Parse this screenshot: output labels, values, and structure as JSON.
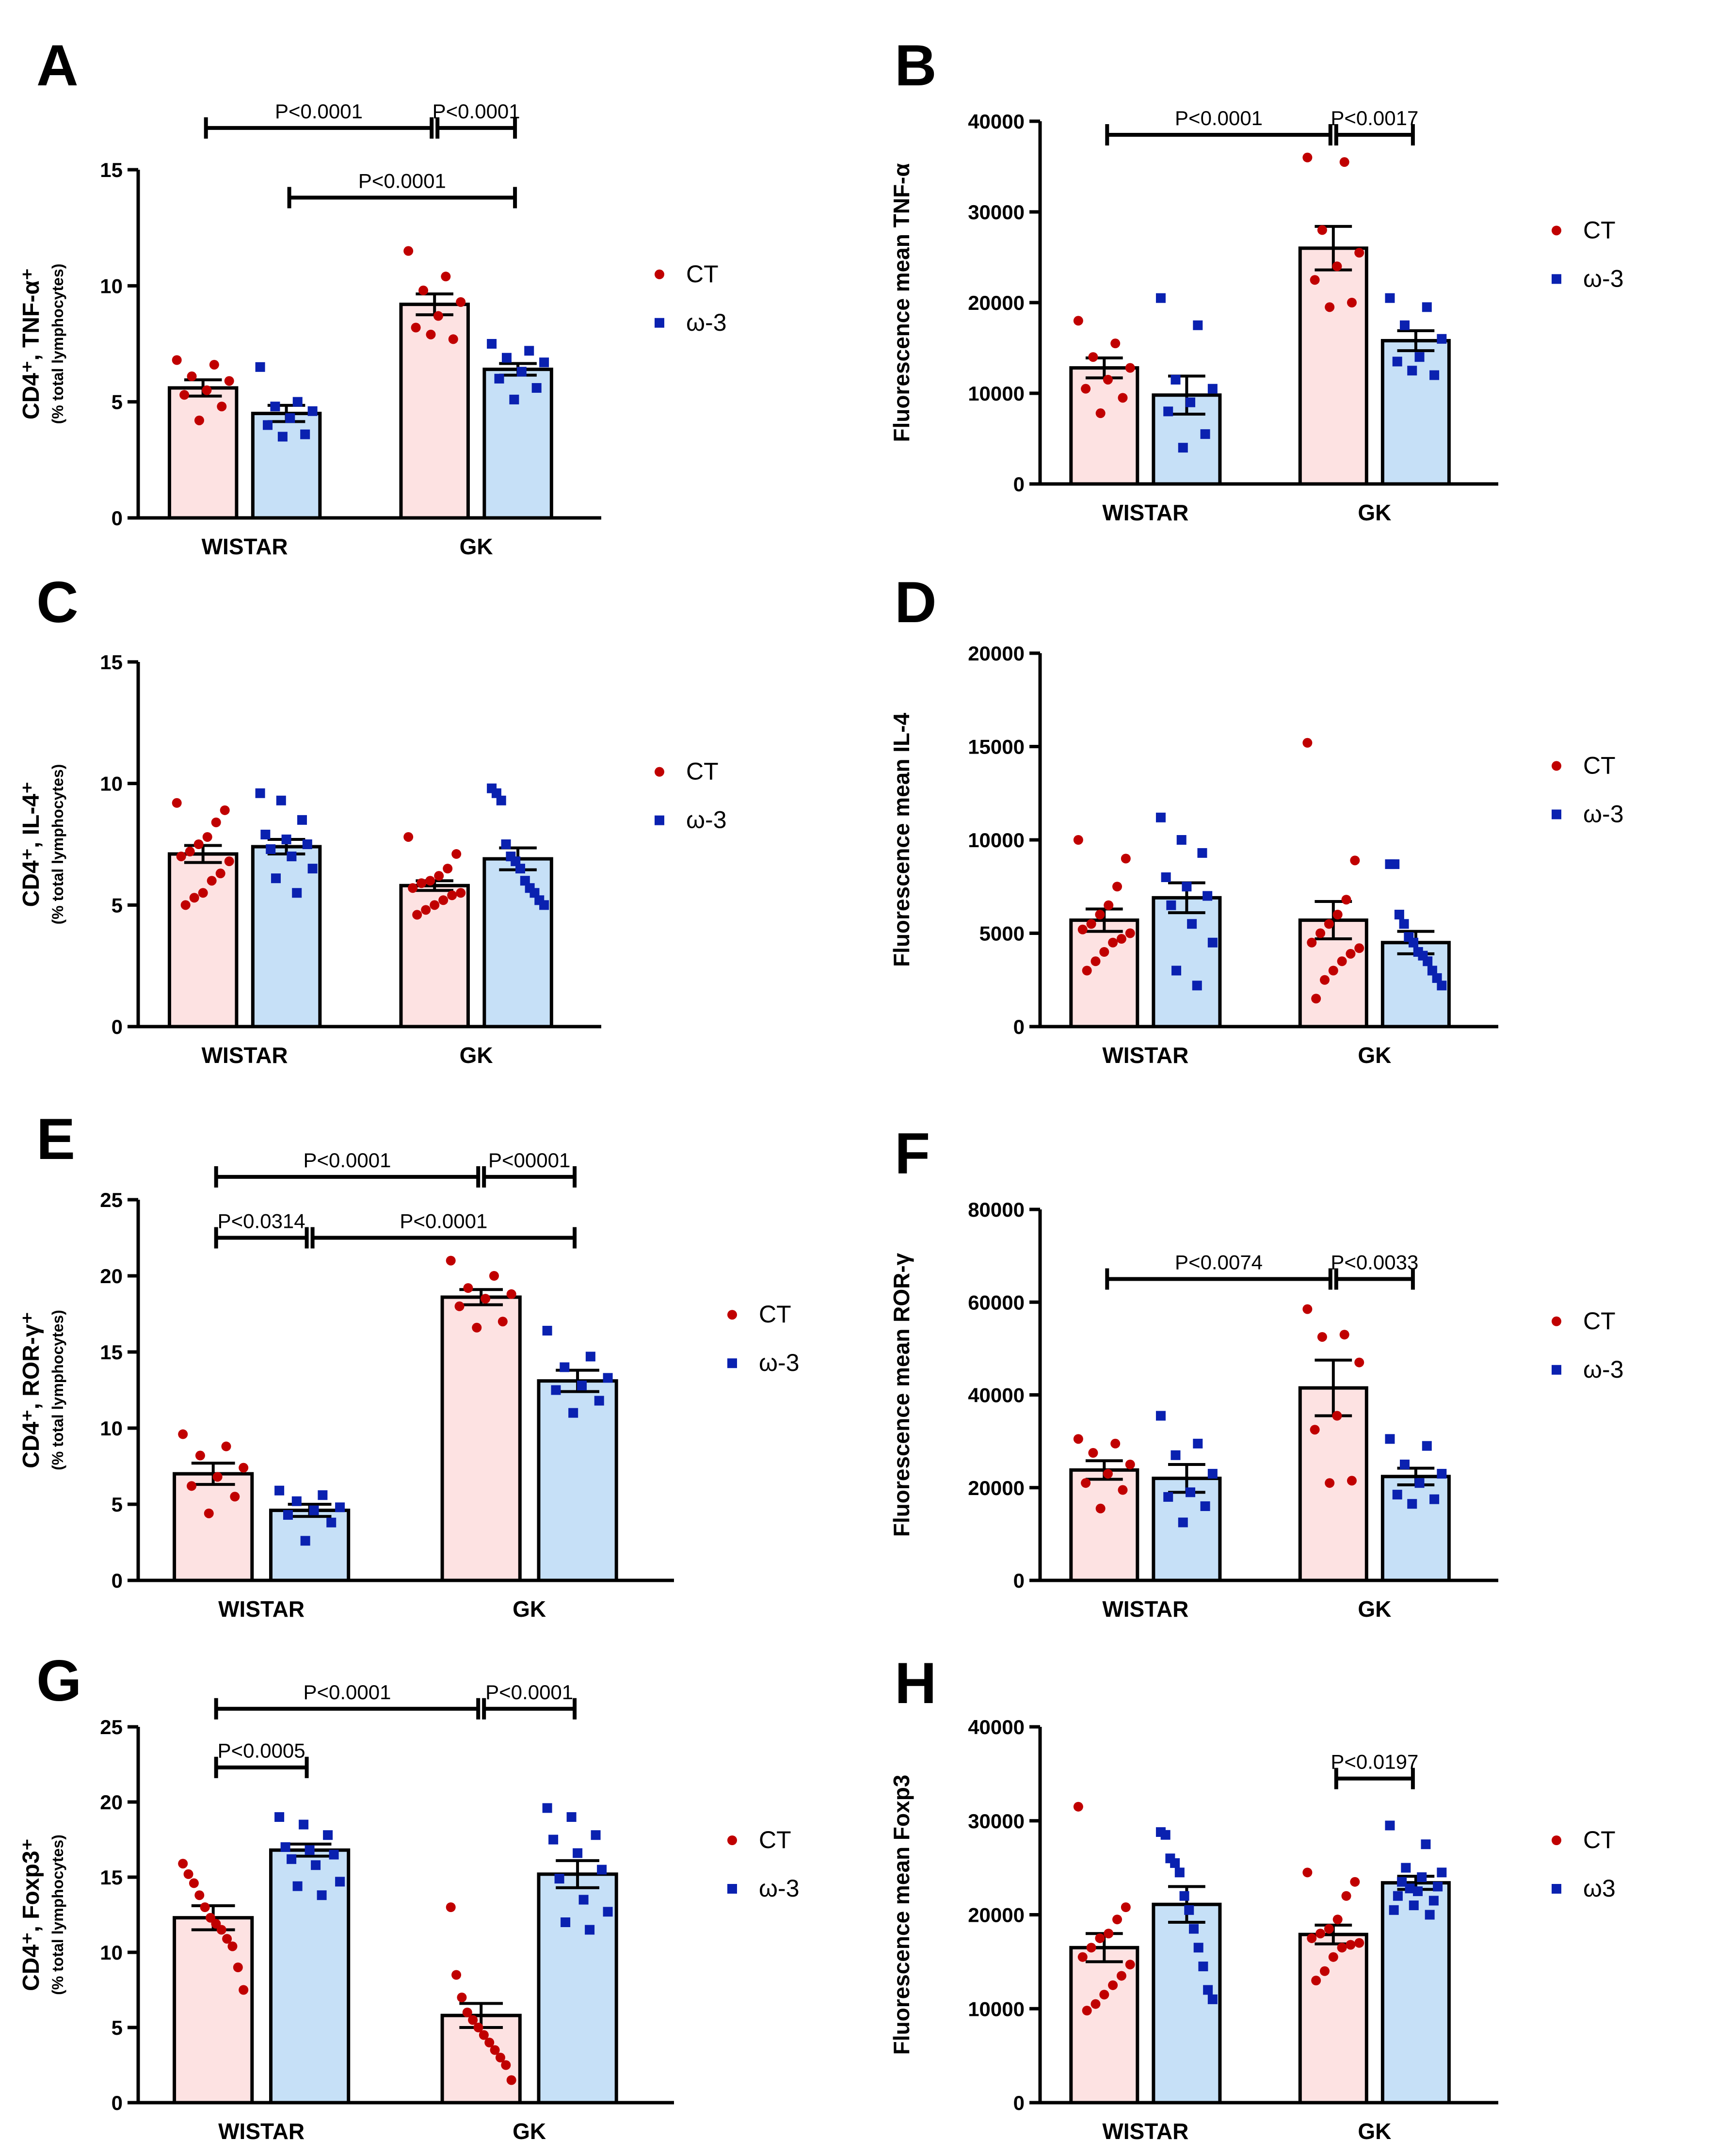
{
  "legend_default": {
    "ct": "CT",
    "w3": "ω-3"
  },
  "chart_data": [
    {
      "id": "A",
      "type": "bar",
      "letter": "A",
      "title": "",
      "ylabel": "CD4⁺, TNF-α⁺",
      "ylabel_sub": "(% total lymphocytes)",
      "ylim": [
        0,
        15
      ],
      "yticks": [
        "0",
        "5",
        "10",
        "15"
      ],
      "categories": [
        "WISTAR",
        "GK"
      ],
      "legend": {
        "ct": "CT",
        "w3": "ω-3"
      },
      "series": [
        {
          "name": "CT",
          "values": [
            5.6,
            9.2
          ],
          "sem": [
            0.35,
            0.45
          ],
          "points": [
            [
              6.8,
              6.6,
              6.1,
              5.9,
              5.5,
              5.3,
              4.8,
              4.2
            ],
            [
              11.5,
              10.4,
              9.8,
              9.3,
              8.7,
              8.2,
              7.7,
              7.9
            ]
          ]
        },
        {
          "name": "ω-3",
          "values": [
            4.5,
            6.4
          ],
          "sem": [
            0.35,
            0.25
          ],
          "points": [
            [
              6.5,
              5.0,
              4.8,
              4.6,
              4.3,
              4.0,
              3.6,
              3.5
            ],
            [
              7.5,
              7.2,
              6.9,
              6.7,
              6.3,
              6.0,
              5.6,
              5.1
            ]
          ]
        }
      ],
      "significance": [
        {
          "from": 0,
          "to": 2,
          "level": 16.8,
          "label": "P<0.0001"
        },
        {
          "from": 2,
          "to": 3,
          "level": 16.8,
          "label": "P<0.0001"
        },
        {
          "from": 1,
          "to": 3,
          "level": 13.8,
          "label": "P<0.0001"
        }
      ]
    },
    {
      "id": "B",
      "type": "bar",
      "letter": "B",
      "title": "",
      "ylabel": "Fluorescence mean TNF-α",
      "ylabel_sub": "",
      "ylim": [
        0,
        40000
      ],
      "yticks": [
        "0",
        "10000",
        "20000",
        "30000",
        "40000"
      ],
      "categories": [
        "WISTAR",
        "GK"
      ],
      "legend": {
        "ct": "CT",
        "w3": "ω-3"
      },
      "series": [
        {
          "name": "CT",
          "values": [
            12800,
            26000
          ],
          "sem": [
            1100,
            2400
          ],
          "points": [
            [
              18000,
              15500,
              14000,
              12800,
              11500,
              10500,
              9500,
              7800
            ],
            [
              36000,
              35500,
              28000,
              25500,
              24000,
              22500,
              20000,
              19500
            ]
          ]
        },
        {
          "name": "ω-3",
          "values": [
            9800,
            15800
          ],
          "sem": [
            2100,
            1100
          ],
          "points": [
            [
              20500,
              17500,
              11500,
              10500,
              9000,
              8000,
              5500,
              4000
            ],
            [
              20500,
              19500,
              17500,
              16000,
              14000,
              13500,
              12000,
              12500
            ]
          ]
        }
      ],
      "significance": [
        {
          "from": 0,
          "to": 2,
          "level": 38500,
          "label": "P<0.0001"
        },
        {
          "from": 2,
          "to": 3,
          "level": 38500,
          "label": "P<0.0017"
        }
      ]
    },
    {
      "id": "C",
      "type": "bar",
      "letter": "C",
      "title": "",
      "ylabel": "CD4⁺, IL-4⁺",
      "ylabel_sub": "(% total lymphocytes)",
      "ylim": [
        0,
        15
      ],
      "yticks": [
        "0",
        "5",
        "10",
        "15"
      ],
      "categories": [
        "WISTAR",
        "GK"
      ],
      "legend": {
        "ct": "CT",
        "w3": "ω-3"
      },
      "series": [
        {
          "name": "CT",
          "values": [
            7.1,
            5.8
          ],
          "sem": [
            0.35,
            0.2
          ],
          "points": [
            [
              9.2,
              8.9,
              8.4,
              7.8,
              7.5,
              7.2,
              7.0,
              6.8,
              6.3,
              6.0,
              5.5,
              5.3,
              5.0
            ],
            [
              7.8,
              7.1,
              6.5,
              6.2,
              6.0,
              5.9,
              5.7,
              5.5,
              5.4,
              5.2,
              5.0,
              4.8,
              4.6
            ]
          ]
        },
        {
          "name": "ω-3",
          "values": [
            7.4,
            6.9
          ],
          "sem": [
            0.3,
            0.45
          ],
          "points": [
            [
              9.6,
              9.3,
              8.5,
              7.9,
              7.7,
              7.5,
              7.3,
              7.0,
              6.5,
              6.1,
              5.5
            ],
            [
              9.8,
              9.6,
              9.3,
              7.5,
              7.0,
              6.8,
              6.5,
              6.0,
              5.7,
              5.5,
              5.2,
              5.0
            ]
          ]
        }
      ],
      "significance": []
    },
    {
      "id": "D",
      "type": "bar",
      "letter": "D",
      "title": "",
      "ylabel": "Fluorescence mean IL-4",
      "ylabel_sub": "",
      "ylim": [
        0,
        20000
      ],
      "yticks": [
        "0",
        "5000",
        "10000",
        "15000",
        "20000"
      ],
      "categories": [
        "WISTAR",
        "GK"
      ],
      "legend": {
        "ct": "CT",
        "w3": "ω-3"
      },
      "series": [
        {
          "name": "CT",
          "values": [
            5700,
            5700
          ],
          "sem": [
            600,
            1000
          ],
          "points": [
            [
              10000,
              9000,
              7500,
              6500,
              6000,
              5500,
              5200,
              5000,
              4700,
              4500,
              4000,
              3500,
              3000
            ],
            [
              15200,
              8900,
              6800,
              6000,
              5500,
              5000,
              4500,
              4200,
              3900,
              3500,
              3000,
              2500,
              1500
            ]
          ]
        },
        {
          "name": "ω-3",
          "values": [
            6900,
            4500
          ],
          "sem": [
            800,
            600
          ],
          "points": [
            [
              11200,
              10000,
              9300,
              8000,
              7500,
              7000,
              6500,
              5500,
              4500,
              3000,
              2200
            ],
            [
              8700,
              8700,
              6000,
              5500,
              4800,
              4500,
              4000,
              3800,
              3500,
              3000,
              2600,
              2200
            ]
          ]
        }
      ],
      "significance": []
    },
    {
      "id": "E",
      "type": "bar",
      "letter": "E",
      "title": "",
      "ylabel": "CD4⁺, ROR-γ⁺",
      "ylabel_sub": "(% total lymphocytes)",
      "ylim": [
        0,
        25
      ],
      "yticks": [
        "0",
        "5",
        "10",
        "15",
        "20",
        "25"
      ],
      "categories": [
        "WISTAR",
        "GK"
      ],
      "legend": {
        "ct": "CT",
        "w3": "ω-3"
      },
      "series": [
        {
          "name": "CT",
          "values": [
            7.0,
            18.6
          ],
          "sem": [
            0.7,
            0.5
          ],
          "points": [
            [
              9.6,
              8.8,
              8.2,
              7.4,
              6.8,
              6.2,
              5.5,
              4.4
            ],
            [
              21.0,
              20.0,
              19.2,
              18.8,
              18.5,
              18.0,
              17.0,
              16.6
            ]
          ]
        },
        {
          "name": "ω-3",
          "values": [
            4.6,
            13.1
          ],
          "sem": [
            0.4,
            0.7
          ],
          "points": [
            [
              5.9,
              5.6,
              5.2,
              4.8,
              4.6,
              4.3,
              3.8,
              2.6
            ],
            [
              16.4,
              14.7,
              14.0,
              13.3,
              12.8,
              12.5,
              11.8,
              11.0
            ]
          ]
        }
      ],
      "significance": [
        {
          "from": 0,
          "to": 2,
          "level": 26.5,
          "label": "P<0.0001"
        },
        {
          "from": 2,
          "to": 3,
          "level": 26.5,
          "label": "P<00001"
        },
        {
          "from": 0,
          "to": 1,
          "level": 22.5,
          "label": "P<0.0314"
        },
        {
          "from": 1,
          "to": 3,
          "level": 22.5,
          "label": "P<0.0001"
        }
      ]
    },
    {
      "id": "F",
      "type": "bar",
      "letter": "F",
      "title": "",
      "ylabel": "Fluorescence mean ROR-γ",
      "ylabel_sub": "",
      "ylim": [
        0,
        80000
      ],
      "yticks": [
        "0",
        "20000",
        "40000",
        "60000",
        "80000"
      ],
      "categories": [
        "WISTAR",
        "GK"
      ],
      "legend": {
        "ct": "CT",
        "w3": "ω-3"
      },
      "series": [
        {
          "name": "CT",
          "values": [
            23800,
            41500
          ],
          "sem": [
            2000,
            6000
          ],
          "points": [
            [
              30500,
              29500,
              27500,
              25000,
              23000,
              21000,
              19500,
              15500
            ],
            [
              58500,
              53000,
              52500,
              47000,
              35500,
              32500,
              21500,
              21000
            ]
          ]
        },
        {
          "name": "ω-3",
          "values": [
            22000,
            22400
          ],
          "sem": [
            3000,
            1800
          ],
          "points": [
            [
              35500,
              29500,
              27000,
              23000,
              19000,
              18000,
              16000,
              12500
            ],
            [
              30500,
              29000,
              25000,
              23000,
              21000,
              18500,
              17500,
              16500
            ]
          ]
        }
      ],
      "significance": [
        {
          "from": 0,
          "to": 2,
          "level": 65000,
          "label": "P<0.0074"
        },
        {
          "from": 2,
          "to": 3,
          "level": 65000,
          "label": "P<0.0033"
        }
      ]
    },
    {
      "id": "G",
      "type": "bar",
      "letter": "G",
      "title": "",
      "ylabel": "CD4⁺, Foxp3⁺",
      "ylabel_sub": "(% total lymphocytes)",
      "ylim": [
        0,
        25
      ],
      "yticks": [
        "0",
        "5",
        "10",
        "15",
        "20",
        "25"
      ],
      "categories": [
        "WISTAR",
        "GK"
      ],
      "legend": {
        "ct": "CT",
        "w3": "ω-3"
      },
      "series": [
        {
          "name": "CT",
          "values": [
            12.3,
            5.8
          ],
          "sem": [
            0.8,
            0.8
          ],
          "points": [
            [
              15.9,
              15.2,
              14.6,
              13.8,
              13.0,
              12.3,
              11.9,
              11.5,
              10.9,
              10.4,
              9.0,
              7.5
            ],
            [
              13.0,
              8.5,
              7.0,
              6.0,
              5.5,
              5.0,
              4.5,
              4.0,
              3.5,
              3.0,
              2.5,
              1.5
            ]
          ]
        },
        {
          "name": "ω-3",
          "values": [
            16.8,
            15.2
          ],
          "sem": [
            0.4,
            0.9
          ],
          "points": [
            [
              19.0,
              18.5,
              17.8,
              17.0,
              16.8,
              16.5,
              16.2,
              15.8,
              14.7,
              14.4,
              13.8
            ],
            [
              19.6,
              19.0,
              17.8,
              17.5,
              16.6,
              15.5,
              14.9,
              13.5,
              12.7,
              12.0,
              11.5
            ]
          ]
        }
      ],
      "significance": [
        {
          "from": 0,
          "to": 2,
          "level": 26.2,
          "label": "P<0.0001"
        },
        {
          "from": 2,
          "to": 3,
          "level": 26.2,
          "label": "P<0.0001"
        },
        {
          "from": 0,
          "to": 1,
          "level": 22.3,
          "label": "P<0.0005"
        }
      ]
    },
    {
      "id": "H",
      "type": "bar",
      "letter": "H",
      "title": "",
      "ylabel": "Fluorescence mean Foxp3",
      "ylabel_sub": "",
      "ylim": [
        0,
        40000
      ],
      "yticks": [
        "0",
        "10000",
        "20000",
        "30000",
        "40000"
      ],
      "categories": [
        "WISTAR",
        "GK"
      ],
      "legend": {
        "ct": "CT",
        "w3": "ω3"
      },
      "series": [
        {
          "name": "CT",
          "values": [
            16500,
            17900
          ],
          "sem": [
            1500,
            1000
          ],
          "points": [
            [
              31500,
              20800,
              19500,
              18000,
              17500,
              16500,
              15500,
              14700,
              13500,
              12500,
              11500,
              10500,
              9800
            ],
            [
              24500,
              23500,
              22000,
              19500,
              18500,
              18000,
              17500,
              17000,
              16800,
              16500,
              15500,
              14000,
              13000
            ]
          ]
        },
        {
          "name": "ω3",
          "values": [
            21100,
            23400
          ],
          "sem": [
            1900,
            700
          ],
          "points": [
            [
              28800,
              28500,
              26000,
              25500,
              24500,
              22000,
              20500,
              18500,
              16500,
              14500,
              12000,
              11000
            ],
            [
              29500,
              27500,
              25000,
              24500,
              24000,
              23500,
              23000,
              22500,
              22000,
              21500,
              21000,
              20500,
              20000,
              22800
            ]
          ]
        }
      ],
      "significance": [
        {
          "from": 2,
          "to": 3,
          "level": 34500,
          "label": "P<0.0197"
        }
      ]
    }
  ]
}
